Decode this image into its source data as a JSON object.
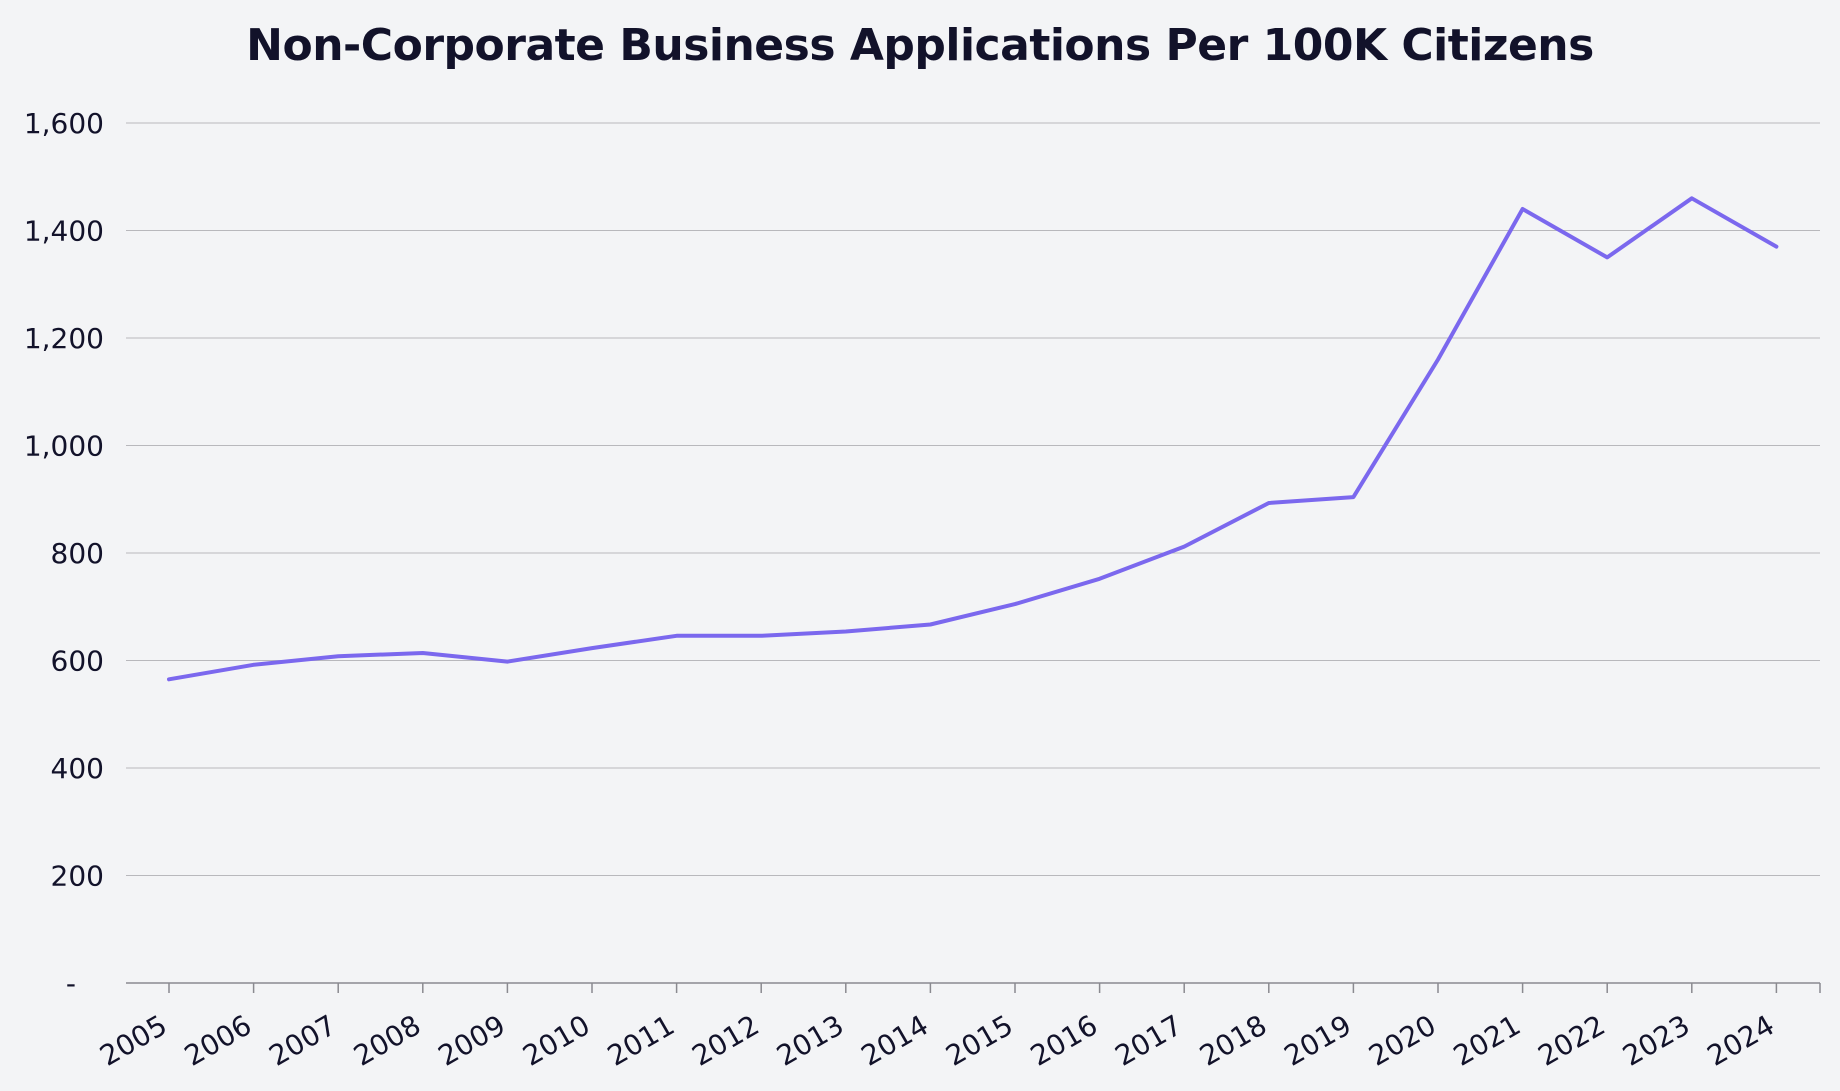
{
  "chart_data": {
    "type": "line",
    "title": "Non-Corporate Business Applications Per 100K Citizens",
    "xlabel": "",
    "ylabel": "",
    "categories": [
      "2005",
      "2006",
      "2007",
      "2008",
      "2009",
      "2010",
      "2011",
      "2012",
      "2013",
      "2014",
      "2015",
      "2016",
      "2017",
      "2018",
      "2019",
      "2020",
      "2021",
      "2022",
      "2023",
      "2024"
    ],
    "series": [
      {
        "name": "Non-Corporate Business Applications Per 100K Citizens",
        "values": [
          565,
          592,
          608,
          614,
          598,
          623,
          646,
          646,
          654,
          667,
          705,
          752,
          812,
          893,
          904,
          1160,
          1440,
          1350,
          1460,
          1370
        ]
      }
    ],
    "ylim": [
      0,
      1600
    ],
    "yticks": [
      0,
      200,
      400,
      600,
      800,
      1000,
      1200,
      1400,
      1600
    ],
    "ytick_labels": [
      "-",
      "200",
      "400",
      "600",
      "800",
      "1,000",
      "1,200",
      "1,400",
      "1,600"
    ],
    "grid": true,
    "legend": "none",
    "line_color": "#7b68ee",
    "grid_color": "#b8b8bc",
    "axis_color": "#8a8a90"
  }
}
